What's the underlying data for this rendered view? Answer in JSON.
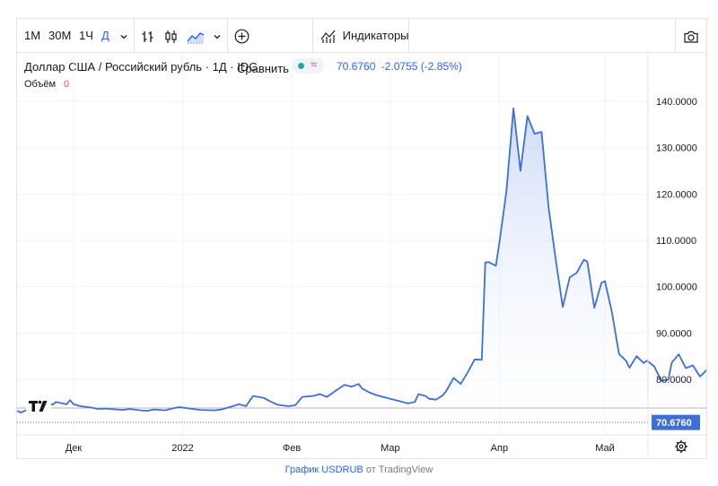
{
  "toolbar": {
    "intervals": [
      "1М",
      "30М",
      "1Ч",
      "Д"
    ],
    "active_interval": "Д",
    "compare_label": "Сравнить",
    "indicators_label": "Индикаторы"
  },
  "legend": {
    "title": "Доллар США / Российский рубль · 1Д · IDC",
    "last": "70.6760",
    "change": "-2.0755",
    "change_pct": "(-2.85%)",
    "volume_label": "Объём",
    "volume_value": "0"
  },
  "colors": {
    "line": "#3d6fd6",
    "area_top": "#c5d4f7",
    "area_bottom": "#ffffff",
    "price_label_bg": "#3d6fd6",
    "change": "#2962ff"
  },
  "footer": {
    "link": "График USDRUB",
    "rest": "от TradingView"
  },
  "chart_data": {
    "type": "area",
    "x_ticks": [
      "Дек",
      "2022",
      "Фев",
      "Мар",
      "Апр",
      "Май"
    ],
    "y_ticks": [
      "140.0000",
      "130.0000",
      "120.0000",
      "110.0000",
      "100.0000",
      "90.0000",
      "80.0000"
    ],
    "ylim": [
      66,
      145
    ],
    "last_price_label": "70.6760",
    "reference_level": 73.8,
    "grid": true,
    "points": [
      [
        "2021-11-15",
        73.2
      ],
      [
        "2021-11-16",
        72.8
      ],
      [
        "2021-11-18",
        73.5
      ],
      [
        "2021-11-22",
        74.2
      ],
      [
        "2021-11-24",
        74.9
      ],
      [
        "2021-11-25",
        74.5
      ],
      [
        "2021-11-26",
        75.1
      ],
      [
        "2021-11-29",
        74.6
      ],
      [
        "2021-11-30",
        75.5
      ],
      [
        "2021-12-01",
        74.6
      ],
      [
        "2021-12-03",
        74.2
      ],
      [
        "2021-12-06",
        73.9
      ],
      [
        "2021-12-08",
        73.6
      ],
      [
        "2021-12-10",
        73.7
      ],
      [
        "2021-12-13",
        73.5
      ],
      [
        "2021-12-15",
        73.4
      ],
      [
        "2021-12-17",
        73.6
      ],
      [
        "2021-12-20",
        73.3
      ],
      [
        "2021-12-22",
        73.2
      ],
      [
        "2021-12-24",
        73.5
      ],
      [
        "2021-12-27",
        73.3
      ],
      [
        "2021-12-29",
        73.7
      ],
      [
        "2021-12-31",
        74.0
      ],
      [
        "2022-01-04",
        73.6
      ],
      [
        "2022-01-06",
        73.4
      ],
      [
        "2022-01-10",
        73.3
      ],
      [
        "2022-01-12",
        73.5
      ],
      [
        "2022-01-14",
        73.9
      ],
      [
        "2022-01-17",
        74.6
      ],
      [
        "2022-01-19",
        74.2
      ],
      [
        "2022-01-21",
        76.4
      ],
      [
        "2022-01-24",
        76.0
      ],
      [
        "2022-01-26",
        75.2
      ],
      [
        "2022-01-28",
        74.5
      ],
      [
        "2022-01-31",
        74.2
      ],
      [
        "2022-02-02",
        74.4
      ],
      [
        "2022-02-04",
        76.2
      ],
      [
        "2022-02-07",
        76.4
      ],
      [
        "2022-02-09",
        76.8
      ],
      [
        "2022-02-11",
        76.2
      ],
      [
        "2022-02-14",
        77.8
      ],
      [
        "2022-02-16",
        78.8
      ],
      [
        "2022-02-18",
        78.4
      ],
      [
        "2022-02-20",
        79.0
      ],
      [
        "2022-02-21",
        78.0
      ],
      [
        "2022-02-23",
        77.2
      ],
      [
        "2022-02-25",
        76.6
      ],
      [
        "2022-02-28",
        76.0
      ],
      [
        "2022-03-02",
        75.6
      ],
      [
        "2022-03-04",
        75.2
      ],
      [
        "2022-03-06",
        74.8
      ],
      [
        "2022-03-08",
        75.1
      ],
      [
        "2022-03-09",
        76.8
      ],
      [
        "2022-03-11",
        76.4
      ],
      [
        "2022-03-12",
        75.8
      ],
      [
        "2022-03-14",
        75.6
      ],
      [
        "2022-03-16",
        76.6
      ],
      [
        "2022-03-17",
        77.6
      ],
      [
        "2022-03-19",
        80.3
      ],
      [
        "2022-03-21",
        79.0
      ],
      [
        "2022-03-23",
        81.5
      ],
      [
        "2022-03-25",
        84.3
      ],
      [
        "2022-03-27",
        84.2
      ],
      [
        "2022-03-28",
        105.2
      ],
      [
        "2022-03-29",
        105.3
      ],
      [
        "2022-03-31",
        104.5
      ],
      [
        "2022-04-01",
        109.5
      ],
      [
        "2022-04-03",
        120.5
      ],
      [
        "2022-04-05",
        138.5
      ],
      [
        "2022-04-07",
        125.0
      ],
      [
        "2022-04-09",
        136.8
      ],
      [
        "2022-04-11",
        133.0
      ],
      [
        "2022-04-13",
        133.4
      ],
      [
        "2022-04-15",
        117.0
      ],
      [
        "2022-04-17",
        106.0
      ],
      [
        "2022-04-19",
        95.6
      ],
      [
        "2022-04-21",
        102.0
      ],
      [
        "2022-04-23",
        103.0
      ],
      [
        "2022-04-25",
        105.8
      ],
      [
        "2022-04-26",
        105.4
      ],
      [
        "2022-04-28",
        95.4
      ],
      [
        "2022-04-30",
        100.8
      ],
      [
        "2022-05-01",
        101.2
      ],
      [
        "2022-05-03",
        94.5
      ],
      [
        "2022-05-05",
        85.5
      ],
      [
        "2022-05-07",
        84.0
      ],
      [
        "2022-05-08",
        82.5
      ],
      [
        "2022-05-10",
        85.0
      ],
      [
        "2022-05-12",
        83.5
      ],
      [
        "2022-05-13",
        84.0
      ],
      [
        "2022-05-15",
        82.8
      ],
      [
        "2022-05-17",
        79.7
      ],
      [
        "2022-05-19",
        79.9
      ],
      [
        "2022-05-20",
        83.6
      ],
      [
        "2022-05-22",
        85.4
      ],
      [
        "2022-05-24",
        82.4
      ],
      [
        "2022-05-26",
        83.0
      ],
      [
        "2022-05-28",
        80.6
      ],
      [
        "2022-05-29",
        81.3
      ],
      [
        "2022-05-31",
        82.9
      ],
      [
        "2022-06-02",
        80.2
      ],
      [
        "2022-06-04",
        76.5
      ],
      [
        "2022-06-06",
        74.9
      ],
      [
        "2022-06-08",
        73.5
      ],
      [
        "2022-06-10",
        72.4
      ],
      [
        "2022-06-11",
        70.7
      ]
    ]
  }
}
